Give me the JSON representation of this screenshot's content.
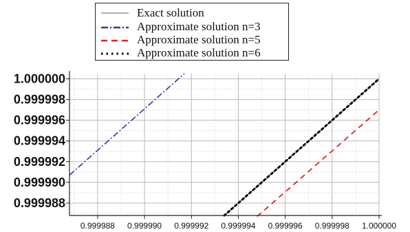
{
  "chart_data": {
    "type": "line",
    "title": "",
    "xlabel": "",
    "ylabel": "",
    "xlim": [
      0.9999868,
      1.0
    ],
    "ylim": [
      0.9999868,
      1.0000005
    ],
    "x_ticks": [
      "0.999988",
      "0.999990",
      "0.999992",
      "0.999994",
      "0.999996",
      "0.999998",
      "1.000000"
    ],
    "y_ticks": [
      "0.999988",
      "0.999990",
      "0.999992",
      "0.999994",
      "0.999996",
      "0.999998",
      "1.000000"
    ],
    "x_tick_values": [
      0.999988,
      0.99999,
      0.999992,
      0.999994,
      0.999996,
      0.999998,
      1.0
    ],
    "y_tick_values": [
      0.999988,
      0.99999,
      0.999992,
      0.999994,
      0.999996,
      0.999998,
      1.0
    ],
    "grid": true,
    "legend_position": "top",
    "series": [
      {
        "name": "Exact solution",
        "color": "#808080",
        "dash": "solid",
        "x": [
          0.9999934,
          1.0
        ],
        "y": [
          0.9999868,
          1.0
        ]
      },
      {
        "name": "Approximate solution n=3",
        "color": "#2b3a9e",
        "dash": "dashdot",
        "x": [
          0.9999868,
          0.9999917
        ],
        "y": [
          0.9999907,
          1.0000005
        ]
      },
      {
        "name": "Approximate solution n=5",
        "color": "#e02020",
        "dash": "dash",
        "x": [
          0.9999948,
          1.0
        ],
        "y": [
          0.9999867,
          0.999997
        ]
      },
      {
        "name": "Approximate solution n=6",
        "color": "#000000",
        "dash": "dot",
        "x": [
          0.9999934,
          1.0
        ],
        "y": [
          0.9999868,
          1.0
        ]
      }
    ]
  }
}
